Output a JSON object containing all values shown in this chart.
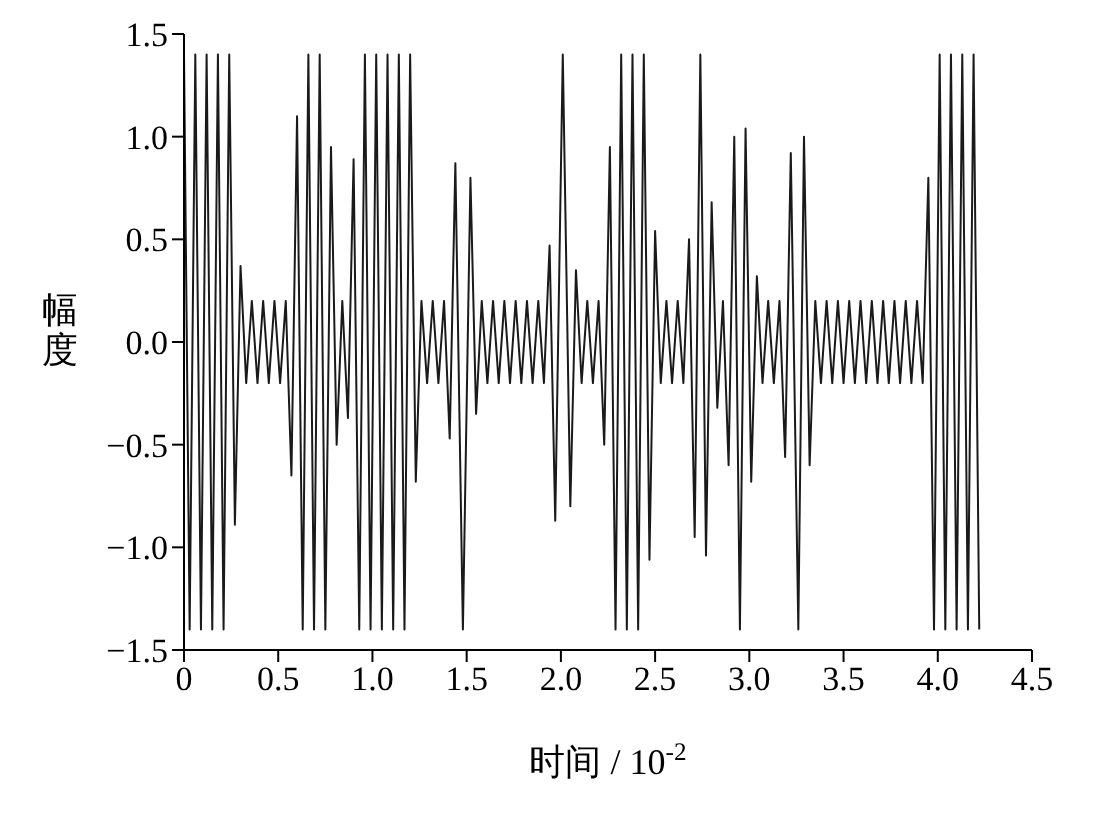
{
  "chart_data": {
    "type": "line",
    "xlabel": "时间 / 10$^{-2}$",
    "ylabel": "幅度",
    "xlim": [
      0,
      4.5
    ],
    "xticks": [
      0,
      {
        "value": 0.5,
        "label": "0.5"
      },
      {
        "value": 1,
        "label": "1.0"
      },
      {
        "value": 1.5,
        "label": "1.5"
      },
      {
        "value": 2,
        "label": "2.0"
      },
      {
        "value": 2.5,
        "label": "2.5"
      },
      {
        "value": 3,
        "label": "3.0"
      },
      {
        "value": 3.5,
        "label": "3.5"
      },
      {
        "value": 4,
        "label": "4.0"
      },
      {
        "value": 4.5,
        "label": "4.5"
      }
    ],
    "ylim": [
      -1.5,
      1.5
    ],
    "yticks": [
      {
        "value": -1.5,
        "label": "−1.5"
      },
      {
        "value": -1,
        "label": "−1.0"
      },
      {
        "value": -0.5,
        "label": "−0.5"
      },
      {
        "value": 0,
        "label": "0.0"
      },
      {
        "value": 0.5,
        "label": "0.5"
      },
      {
        "value": 1,
        "label": "1.0"
      },
      {
        "value": 1.5,
        "label": "1.5"
      }
    ],
    "grid": false,
    "marker": "none",
    "line_style": "solid",
    "series": [
      {
        "color": "#1a1a1a",
        "x": [
          0,
          0.03,
          0.06,
          0.09,
          0.12,
          0.15,
          0.18,
          0.21,
          0.24,
          0.27,
          0.3,
          0.33,
          0.36,
          0.39,
          0.42,
          0.45,
          0.48,
          0.51,
          0.54,
          0.57,
          0.6,
          0.63,
          0.66,
          0.69,
          0.72,
          0.75,
          0.78,
          0.81,
          0.84,
          0.87,
          0.9,
          0.93,
          0.96,
          0.99,
          1.02,
          1.05,
          1.08,
          1.11,
          1.14,
          1.17,
          1.2,
          1.23,
          1.26,
          1.29,
          1.32,
          1.35,
          1.38,
          1.41,
          1.44,
          1.48,
          1.52,
          1.55,
          1.58,
          1.61,
          1.64,
          1.67,
          1.7,
          1.73,
          1.76,
          1.79,
          1.82,
          1.85,
          1.88,
          1.91,
          1.94,
          1.97,
          2.01,
          2.05,
          2.08,
          2.11,
          2.14,
          2.17,
          2.2,
          2.23,
          2.26,
          2.29,
          2.32,
          2.35,
          2.38,
          2.41,
          2.44,
          2.47,
          2.5,
          2.53,
          2.56,
          2.59,
          2.62,
          2.65,
          2.68,
          2.71,
          2.74,
          2.77,
          2.8,
          2.83,
          2.86,
          2.89,
          2.92,
          2.95,
          2.98,
          3.01,
          3.04,
          3.07,
          3.1,
          3.13,
          3.16,
          3.19,
          3.22,
          3.26,
          3.29,
          3.32,
          3.35,
          3.38,
          3.41,
          3.44,
          3.47,
          3.5,
          3.53,
          3.56,
          3.59,
          3.62,
          3.65,
          3.68,
          3.71,
          3.74,
          3.77,
          3.8,
          3.83,
          3.86,
          3.89,
          3.92,
          3.95,
          3.98,
          4.01,
          4.04,
          4.07,
          4.1,
          4.13,
          4.16,
          4.19,
          4.22
        ],
        "values": [
          1.4,
          -1.4,
          1.4,
          -1.4,
          1.4,
          -1.4,
          1.4,
          -1.4,
          1.4,
          -0.89,
          0.37,
          -0.2,
          0.2,
          -0.2,
          0.2,
          -0.2,
          0.2,
          -0.2,
          0.2,
          -0.65,
          1.1,
          -1.4,
          1.4,
          -1.4,
          1.4,
          -1.4,
          0.95,
          -0.5,
          0.2,
          -0.37,
          0.89,
          -1.4,
          1.4,
          -1.4,
          1.4,
          -1.4,
          1.4,
          -1.4,
          1.4,
          -1.4,
          1.4,
          -0.68,
          0.2,
          -0.2,
          0.2,
          -0.2,
          0.2,
          -0.47,
          0.87,
          -1.4,
          0.8,
          -0.35,
          0.2,
          -0.2,
          0.2,
          -0.2,
          0.2,
          -0.2,
          0.2,
          -0.2,
          0.2,
          -0.2,
          0.2,
          -0.2,
          0.47,
          -0.87,
          1.4,
          -0.8,
          0.35,
          -0.2,
          0.2,
          -0.2,
          0.2,
          -0.5,
          0.95,
          -1.4,
          1.4,
          -1.4,
          1.4,
          -1.4,
          1.4,
          -1.06,
          0.54,
          -0.2,
          0.2,
          -0.2,
          0.2,
          -0.2,
          0.5,
          -0.95,
          1.4,
          -1.04,
          0.68,
          -0.32,
          0.2,
          -0.6,
          1.0,
          -1.4,
          1.04,
          -0.68,
          0.32,
          -0.2,
          0.2,
          -0.2,
          0.2,
          -0.56,
          0.92,
          -1.4,
          1.0,
          -0.6,
          0.2,
          -0.2,
          0.2,
          -0.2,
          0.2,
          -0.2,
          0.2,
          -0.2,
          0.2,
          -0.2,
          0.2,
          -0.2,
          0.2,
          -0.2,
          0.2,
          -0.2,
          0.2,
          -0.2,
          0.2,
          -0.2,
          0.8,
          -1.4,
          1.4,
          -1.4,
          1.4,
          -1.4,
          1.4,
          -1.4,
          1.4,
          -1.4
        ]
      }
    ]
  }
}
